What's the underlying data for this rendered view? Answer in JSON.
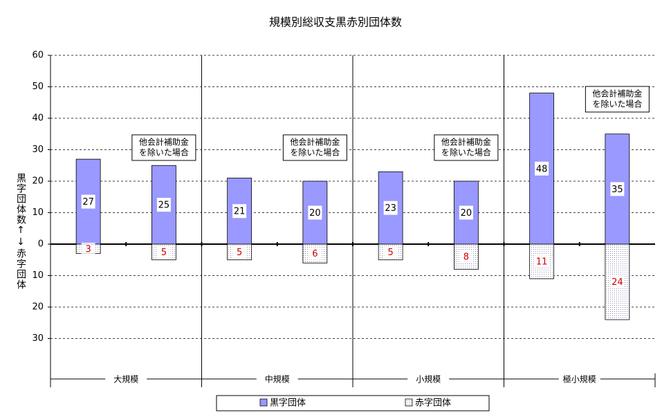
{
  "chart_data": {
    "type": "bar",
    "title": "規模別総収支黒赤別団体数",
    "y_label": "黒字団体数↑↓赤字団体",
    "groups": [
      "大規模",
      "中規模",
      "小規模",
      "極小規模"
    ],
    "annotations": [
      {
        "lines": [
          "他会計補助金",
          "を除いた場合"
        ]
      },
      {
        "lines": [
          "他会計補助金",
          "を除いた場合"
        ]
      },
      {
        "lines": [
          "他会計補助金",
          "を除いた場合"
        ]
      },
      {
        "lines": [
          "他会計補助金",
          "を除いた場合"
        ]
      }
    ],
    "series": [
      {
        "name": "黒字団体",
        "color": "#9999ff",
        "values": [
          27,
          25,
          21,
          20,
          23,
          20,
          48,
          35
        ]
      },
      {
        "name": "赤字団体",
        "color": "#d8d8f0",
        "values": [
          -3,
          -5,
          -5,
          -6,
          -5,
          -8,
          -11,
          -24
        ],
        "value_labels": [
          "3",
          "5",
          "5",
          "6",
          "5",
          "8",
          "11",
          "24"
        ]
      }
    ],
    "ylim": [
      -40,
      60
    ],
    "yticks": [
      60,
      50,
      40,
      30,
      20,
      10,
      0,
      {
        "value": -10,
        "label": "10"
      },
      {
        "value": -20,
        "label": "20"
      },
      {
        "value": -30,
        "label": "30"
      }
    ],
    "grid": true
  }
}
